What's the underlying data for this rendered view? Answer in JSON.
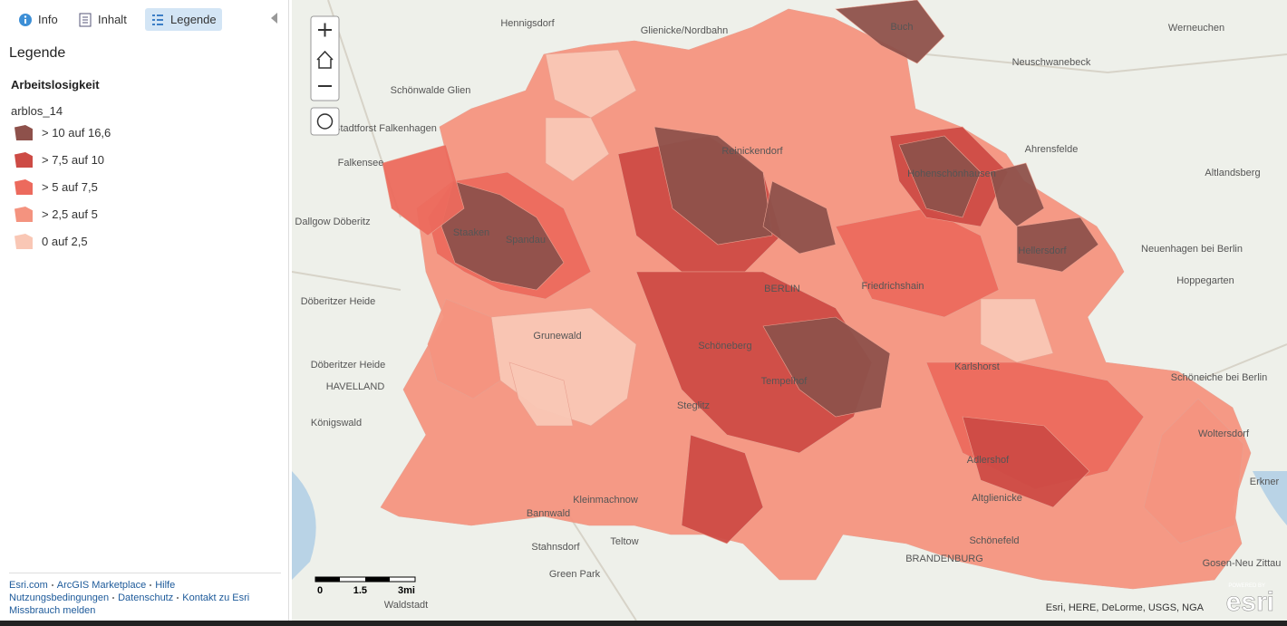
{
  "tabs": [
    "Info",
    "Inhalt",
    "Legende"
  ],
  "panel_title": "Legende",
  "legend": {
    "layer": "Arbeitslosigkeit",
    "field": "arblos_14",
    "items": [
      {
        "label": "> 10 auf 16,6",
        "color": "#8e514b"
      },
      {
        "label": "> 7,5 auf 10",
        "color": "#cd4b45"
      },
      {
        "label": "> 5 auf 7,5",
        "color": "#ec6a5d"
      },
      {
        "label": "> 2,5 auf 5",
        "color": "#f4937f"
      },
      {
        "label": "0 auf 2,5",
        "color": "#f9c7b5"
      }
    ]
  },
  "footer_links": [
    "Esri.com",
    "ArcGIS Marketplace",
    "Hilfe",
    "Nutzungsbedingungen",
    "Datenschutz",
    "Kontakt zu Esri",
    "Missbrauch melden"
  ],
  "map": {
    "labels": [
      "Hennigsdorf",
      "Glienicke/Nordbahn",
      "Werneuchen",
      "Neuschwanebeck",
      "Schönwalde Glien",
      "Stadtforst Falkenhagen",
      "Falkensee",
      "Ahrensfelde",
      "Altlandsberg",
      "Dallgow Döberitz",
      "Reinickendorf",
      "Staaken",
      "Spandau",
      "Neuenhagen bei Berlin",
      "Hoppegarten",
      "BERLIN",
      "Friedrichshain",
      "Döberitzer Heide",
      "Grunewald",
      "Schöneberg",
      "Karlshorst",
      "Döberitzer Heide",
      "Tempelhof",
      "Schöneiche bei Berlin",
      "Steglitz",
      "Königswald",
      "Adlershof",
      "Woltersdorf",
      "Kleinmachnow",
      "Altglienicke",
      "Bannwald",
      "Stahnsdorf",
      "Teltow",
      "Schönefeld",
      "Erkner",
      "Gosen-Neu Zittau",
      "Green Park",
      "Waldstadt",
      "Buch",
      "Hellersdorf",
      "Hohenschönhausen",
      "HAVELLAND",
      "BRANDENBURG"
    ],
    "scale_labels": [
      "0",
      "1.5",
      "3mi"
    ],
    "attribution": "Esri, HERE, DeLorme, USGS, NGA",
    "logo": {
      "caption": "POWERED BY",
      "text": "esri"
    }
  }
}
